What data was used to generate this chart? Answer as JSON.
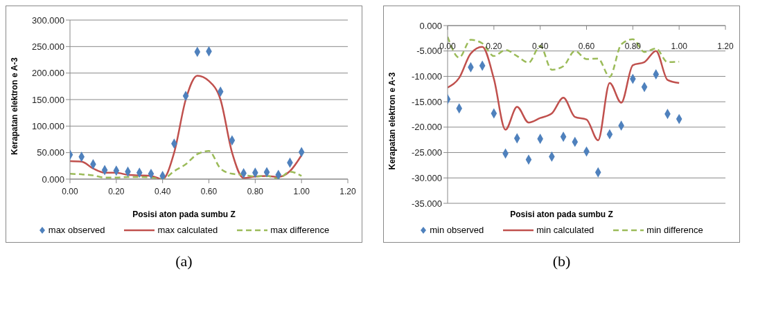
{
  "chart_data": [
    {
      "type": "line",
      "xlabel": "Posisi aton pada sumbu Z",
      "ylabel": "Kerapatan elektron e A-3",
      "annotations": [
        "(a)"
      ],
      "x": [
        0,
        0.05,
        0.1,
        0.15,
        0.2,
        0.25,
        0.3,
        0.35,
        0.4,
        0.45,
        0.5,
        0.55,
        0.6,
        0.65,
        0.7,
        0.75,
        0.8,
        0.85,
        0.9,
        0.95,
        1.0
      ],
      "series": [
        {
          "name": "max observed",
          "type": "scatter",
          "marker": "diamond",
          "color": "#4f81bd",
          "values": [
            46,
            42,
            28,
            17,
            16,
            14,
            12,
            10,
            6,
            67,
            157,
            240,
            241,
            165,
            73,
            11,
            12,
            13,
            8,
            31,
            51
          ]
        },
        {
          "name": "max calculated",
          "type": "line",
          "line_style": "solid",
          "color": "#c0504d",
          "values": [
            34,
            33,
            20,
            12,
            12,
            8,
            7,
            6,
            0,
            50,
            150,
            195,
            185,
            150,
            50,
            2,
            5,
            6,
            4,
            15,
            45
          ]
        },
        {
          "name": "max difference",
          "type": "line",
          "line_style": "dashed",
          "color": "#9bbb59",
          "values": [
            10,
            9,
            7,
            3,
            3,
            4,
            4,
            3,
            0,
            15,
            28,
            47,
            53,
            20,
            10,
            8,
            5,
            6,
            1,
            14,
            6
          ]
        }
      ],
      "xlim": [
        0,
        1.2
      ],
      "xticks": [
        {
          "value": 0,
          "label": "0.00"
        },
        {
          "value": 0.2,
          "label": "0.20"
        },
        {
          "value": 0.4,
          "label": "0.40"
        },
        {
          "value": 0.6,
          "label": "0.60"
        },
        {
          "value": 0.8,
          "label": "0.80"
        },
        {
          "value": 1.0,
          "label": "1.00"
        },
        {
          "value": 1.2,
          "label": "1.20"
        }
      ],
      "ylim": [
        0,
        300
      ],
      "yticks": [
        {
          "value": 0,
          "label": "0.000"
        },
        {
          "value": 50,
          "label": "50.000"
        },
        {
          "value": 100,
          "label": "100.000"
        },
        {
          "value": 150,
          "label": "150.000"
        },
        {
          "value": 200,
          "label": "200.000"
        },
        {
          "value": 250,
          "label": "250.000"
        },
        {
          "value": 300,
          "label": "300.000"
        }
      ],
      "grid": "y",
      "legend": "bottom"
    },
    {
      "type": "line",
      "xlabel": "Posisi aton pada sumbu Z",
      "ylabel": "Kerapatan elektron e A-3",
      "annotations": [
        "(b)"
      ],
      "x": [
        0,
        0.05,
        0.1,
        0.15,
        0.2,
        0.25,
        0.3,
        0.35,
        0.4,
        0.45,
        0.5,
        0.55,
        0.6,
        0.65,
        0.7,
        0.75,
        0.8,
        0.85,
        0.9,
        0.95,
        1.0
      ],
      "series": [
        {
          "name": "min observed",
          "type": "scatter",
          "marker": "diamond",
          "color": "#4f81bd",
          "values": [
            -14.5,
            -16.3,
            -8.2,
            -7.9,
            -17.3,
            -25.2,
            -22.2,
            -26.4,
            -22.3,
            -25.8,
            -21.9,
            -22.9,
            -24.8,
            -28.9,
            -21.4,
            -19.7,
            -10.5,
            -12.1,
            -9.6,
            -17.4,
            -18.4
          ]
        },
        {
          "name": "min calculated",
          "type": "line",
          "line_style": "solid",
          "color": "#c0504d",
          "values": [
            -12.2,
            -10.3,
            -5.5,
            -4.2,
            -10.5,
            -20.5,
            -16,
            -19.1,
            -18.2,
            -17.3,
            -14.2,
            -18,
            -18.5,
            -22.6,
            -11.3,
            -15.2,
            -7.8,
            -7.2,
            -5,
            -10.7,
            -11.3
          ]
        },
        {
          "name": "min difference",
          "type": "line",
          "line_style": "dashed",
          "color": "#9bbb59",
          "values": [
            -2.2,
            -6.3,
            -2.8,
            -3.5,
            -6,
            -4.8,
            -6,
            -7.3,
            -4,
            -8.7,
            -8,
            -5,
            -6.6,
            -6.5,
            -10.1,
            -3.7,
            -2.7,
            -5.2,
            -4.5,
            -7.2,
            -7.1
          ]
        }
      ],
      "xlim": [
        0,
        1.2
      ],
      "xticks": [
        {
          "value": 0,
          "label": "0.00"
        },
        {
          "value": 0.2,
          "label": "0.20"
        },
        {
          "value": 0.4,
          "label": "0.40"
        },
        {
          "value": 0.6,
          "label": "0.60"
        },
        {
          "value": 0.8,
          "label": "0.80"
        },
        {
          "value": 1.0,
          "label": "1.00"
        },
        {
          "value": 1.2,
          "label": "1.20"
        }
      ],
      "ylim": [
        -35,
        0
      ],
      "yticks": [
        {
          "value": -35,
          "label": "-35.000"
        },
        {
          "value": -30,
          "label": "-30.000"
        },
        {
          "value": -25,
          "label": "-25.000"
        },
        {
          "value": -20,
          "label": "-20.000"
        },
        {
          "value": -15,
          "label": "-15.000"
        },
        {
          "value": -10,
          "label": "-10.000"
        },
        {
          "value": -5,
          "label": "-5.000"
        },
        {
          "value": 0,
          "label": "0.000"
        }
      ],
      "grid": "y",
      "legend": "bottom"
    }
  ]
}
